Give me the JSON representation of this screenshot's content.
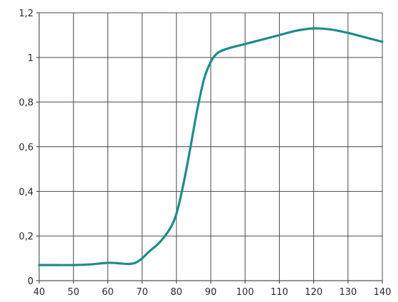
{
  "chart_data": {
    "type": "line",
    "title": "",
    "xlabel": "",
    "ylabel": "",
    "xlim": [
      40,
      140
    ],
    "ylim": [
      0,
      1.2
    ],
    "grid": true,
    "x_ticks": [
      "40",
      "50",
      "60",
      "70",
      "80",
      "90",
      "100",
      "110",
      "120",
      "130",
      "140"
    ],
    "y_ticks": [
      "0",
      "0,2",
      "0,4",
      "0,6",
      "0,8",
      "1",
      "1,2"
    ],
    "series": [
      {
        "color": "#1e8c88",
        "x": [
          40,
          45,
          50,
          55,
          60,
          63,
          66,
          68,
          70,
          72,
          75,
          78,
          80,
          82,
          84,
          86,
          88,
          90,
          92,
          95,
          100,
          105,
          110,
          115,
          120,
          125,
          130,
          135,
          140
        ],
        "y": [
          0.07,
          0.07,
          0.07,
          0.073,
          0.08,
          0.078,
          0.075,
          0.08,
          0.1,
          0.13,
          0.17,
          0.23,
          0.3,
          0.43,
          0.59,
          0.76,
          0.9,
          0.98,
          1.02,
          1.04,
          1.06,
          1.08,
          1.1,
          1.12,
          1.13,
          1.125,
          1.11,
          1.09,
          1.07
        ]
      }
    ]
  }
}
